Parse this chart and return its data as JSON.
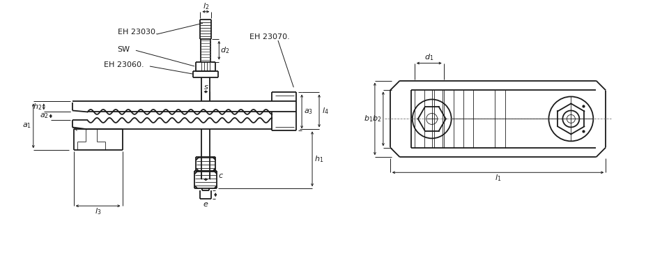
{
  "bg_color": "#ffffff",
  "lc": "#1a1a1a",
  "lw_main": 1.3,
  "lw_thin": 0.6,
  "lw_dim": 0.7,
  "labels": {
    "EH23030": "EH 23030.",
    "EH23060": "EH 23060.",
    "EH23070": "EH 23070.",
    "SW": "SW"
  }
}
